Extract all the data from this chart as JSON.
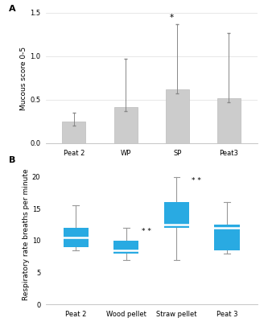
{
  "panel_A": {
    "categories": [
      "Peat 2",
      "WP",
      "SP",
      "Peat3"
    ],
    "values": [
      0.25,
      0.42,
      0.62,
      0.52
    ],
    "error_upper": [
      0.1,
      0.55,
      0.75,
      0.75
    ],
    "error_lower": [
      0.05,
      0.05,
      0.05,
      0.05
    ],
    "bar_color": "#cccccc",
    "bar_edge_color": "#bbbbbb",
    "ylabel": "Mucous score 0-5",
    "ylim": [
      0.0,
      1.5
    ],
    "yticks": [
      0.0,
      0.5,
      1.0,
      1.5
    ],
    "sig_labels": {
      "SP": "*"
    }
  },
  "panel_B": {
    "categories": [
      "Peat 2",
      "Wood pellet",
      "Straw pellet",
      "Peat 3"
    ],
    "boxes": [
      {
        "q1": 9.0,
        "median": 10.5,
        "q3": 12.0,
        "whisker_low": 8.5,
        "whisker_high": 15.5
      },
      {
        "q1": 8.0,
        "median": 8.5,
        "q3": 10.0,
        "whisker_low": 7.0,
        "whisker_high": 12.0
      },
      {
        "q1": 12.0,
        "median": 12.5,
        "q3": 16.0,
        "whisker_low": 7.0,
        "whisker_high": 20.0
      },
      {
        "q1": 8.5,
        "median": 12.0,
        "q3": 12.5,
        "whisker_low": 8.0,
        "whisker_high": 16.0
      }
    ],
    "box_color": "#29aae2",
    "whisker_color": "#999999",
    "ylabel": "Respiratory rate breaths per minute",
    "ylim": [
      0,
      22
    ],
    "yticks": [
      0,
      5,
      10,
      15,
      20
    ],
    "sig_labels": {
      "Wood pellet": "* *",
      "Straw pellet": "* *"
    }
  },
  "background_color": "#ffffff",
  "panel_label_fontsize": 8,
  "axis_fontsize": 6.5,
  "tick_fontsize": 6
}
